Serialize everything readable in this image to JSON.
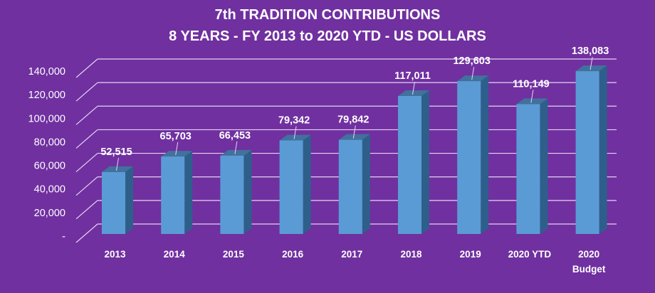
{
  "chart_data": {
    "type": "bar",
    "title": [
      "7th TRADITION CONTRIBUTIONS",
      "8 YEARS - FY 2013 to 2020 YTD - US DOLLARS"
    ],
    "xlabel": "",
    "ylabel": "",
    "categories": [
      [
        "2013"
      ],
      [
        "2014"
      ],
      [
        "2015"
      ],
      [
        "2016"
      ],
      [
        "2017"
      ],
      [
        "2018"
      ],
      [
        "2019"
      ],
      [
        "2020 YTD"
      ],
      [
        "2020",
        "Budget"
      ]
    ],
    "values": [
      52515,
      65703,
      66453,
      79342,
      79842,
      117011,
      129603,
      110149,
      138083
    ],
    "data_labels": [
      "52,515",
      "65,703",
      "66,453",
      "79,342",
      "79,842",
      "117,011",
      "129,603",
      "110,149",
      "138,083"
    ],
    "yticks": [
      0,
      20000,
      40000,
      60000,
      80000,
      100000,
      120000,
      140000
    ],
    "ytick_labels": [
      "-",
      "20,000",
      "40,000",
      "60,000",
      "80,000",
      "100,000",
      "120,000",
      "140,000"
    ],
    "ylim": [
      0,
      140000
    ],
    "grid": true,
    "legend": "none",
    "style": "3d-column",
    "colors": {
      "background": "#7030A0",
      "bar_front": "#5B9BD5",
      "bar_top": "#41719C",
      "bar_side": "#2E5F8A",
      "gridline": "#E6D3F2",
      "text": "#FFFFFF"
    }
  }
}
